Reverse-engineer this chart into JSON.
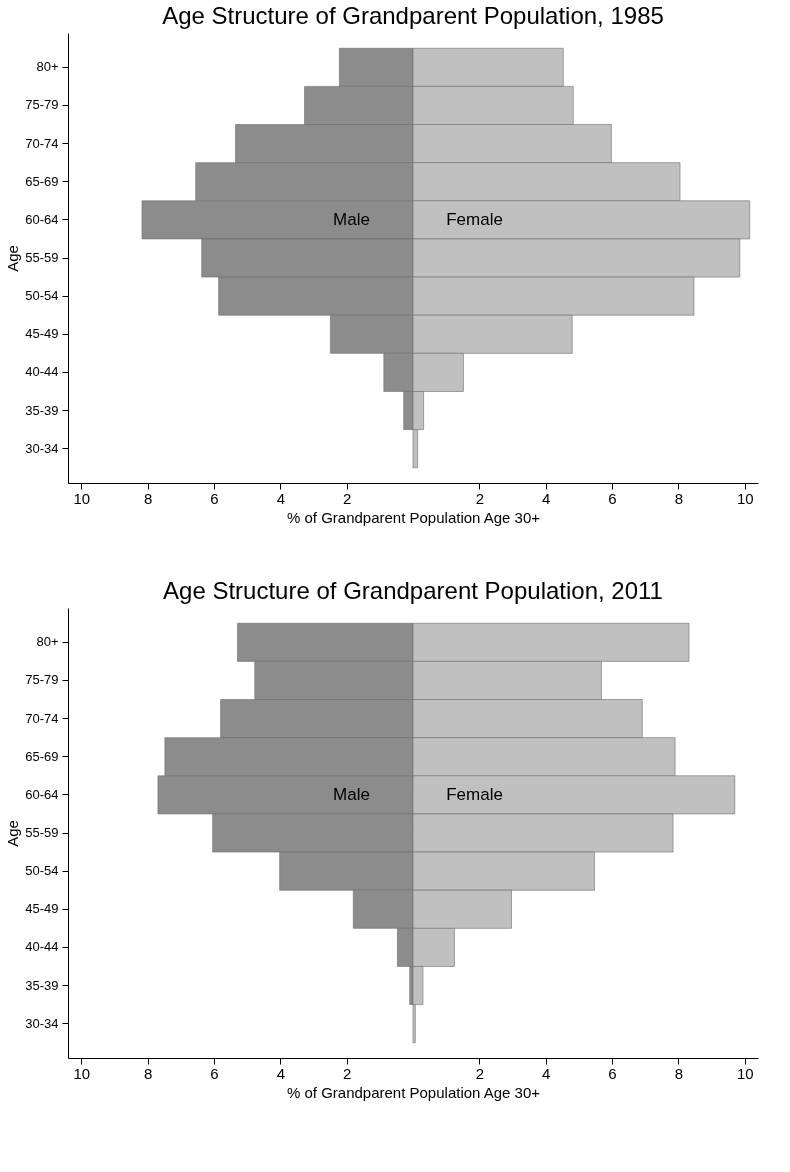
{
  "chart_data": [
    {
      "type": "bar",
      "orientation": "horizontal",
      "title": "Age Structure of Grandparent Population, 1985",
      "xlabel": "% of Grandparent Population Age 30+",
      "ylabel": "Age",
      "categories": [
        "80+",
        "75-79",
        "70-74",
        "65-69",
        "60-64",
        "55-59",
        "50-54",
        "45-49",
        "40-44",
        "35-39",
        "30-34"
      ],
      "series": [
        {
          "name": "Male",
          "color": "#8c8c8c",
          "values": [
            -2.22,
            -3.27,
            -5.35,
            -6.55,
            -8.17,
            -6.37,
            -5.86,
            -2.49,
            -0.88,
            -0.28,
            null
          ]
        },
        {
          "name": "Female",
          "color": "#c0c0c0",
          "values": [
            4.53,
            4.83,
            5.98,
            8.05,
            10.15,
            9.85,
            8.47,
            4.8,
            1.52,
            0.32,
            0.14
          ]
        }
      ],
      "xlim": [
        -10.4,
        10.4
      ],
      "xticks": [
        {
          "value": -10,
          "label": "10"
        },
        {
          "value": -8,
          "label": "8"
        },
        {
          "value": -6,
          "label": "6"
        },
        {
          "value": -4,
          "label": "4"
        },
        {
          "value": -2,
          "label": "2"
        },
        2,
        4,
        6,
        8,
        10
      ],
      "stacked": true,
      "grid": false,
      "legend": false
    },
    {
      "type": "bar",
      "orientation": "horizontal",
      "title": "Age Structure of Grandparent Population, 2011",
      "xlabel": "% of Grandparent Population Age 30+",
      "ylabel": "Age",
      "categories": [
        "80+",
        "75-79",
        "70-74",
        "65-69",
        "60-64",
        "55-59",
        "50-54",
        "45-49",
        "40-44",
        "35-39",
        "30-34"
      ],
      "series": [
        {
          "name": "Male",
          "color": "#8c8c8c",
          "values": [
            -5.29,
            -4.77,
            -5.8,
            -7.48,
            -7.69,
            -6.04,
            -4.02,
            -1.8,
            -0.47,
            -0.1,
            null
          ]
        },
        {
          "name": "Female",
          "color": "#c0c0c0",
          "values": [
            8.32,
            5.68,
            6.91,
            7.9,
            9.7,
            7.84,
            5.47,
            2.97,
            1.25,
            0.3,
            0.07
          ]
        }
      ],
      "xlim": [
        -10.4,
        10.4
      ],
      "xticks": [
        {
          "value": -10,
          "label": "10"
        },
        {
          "value": -8,
          "label": "8"
        },
        {
          "value": -6,
          "label": "6"
        },
        {
          "value": -4,
          "label": "4"
        },
        {
          "value": -2,
          "label": "2"
        },
        2,
        4,
        6,
        8,
        10
      ],
      "stacked": true,
      "grid": false,
      "legend": false
    }
  ]
}
